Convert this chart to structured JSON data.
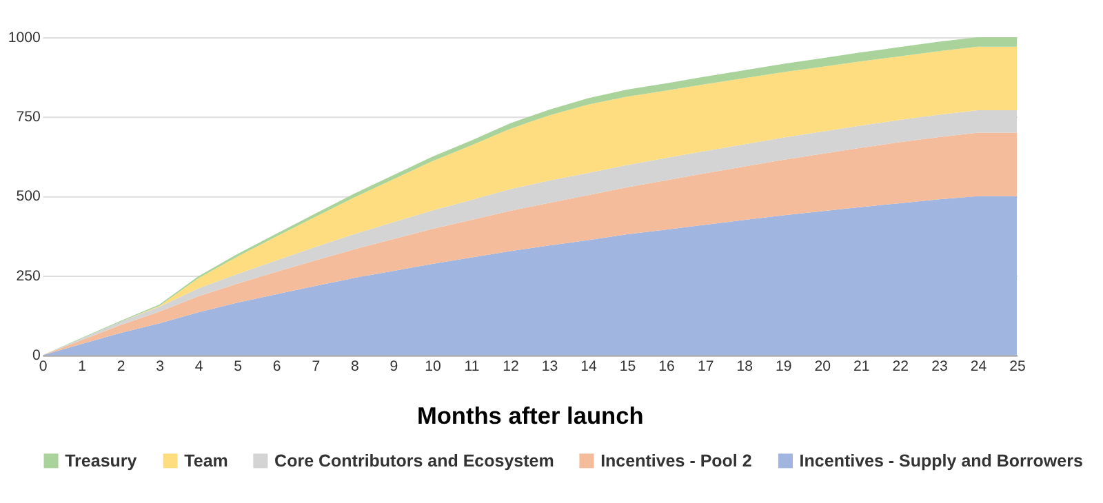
{
  "chart_data": {
    "type": "area",
    "stacked": true,
    "xlabel": "Months after launch",
    "x": [
      0,
      1,
      2,
      3,
      4,
      5,
      6,
      7,
      8,
      9,
      10,
      11,
      12,
      13,
      14,
      15,
      16,
      17,
      18,
      19,
      20,
      21,
      22,
      23,
      24,
      25
    ],
    "series": [
      {
        "name": "Incentives - Supply and Borrowers",
        "color": "#a0b6e0",
        "values": [
          0,
          35,
          70,
          100,
          135,
          165,
          192,
          218,
          243,
          265,
          287,
          307,
          327,
          345,
          362,
          380,
          395,
          410,
          425,
          440,
          453,
          466,
          478,
          490,
          500,
          500
        ]
      },
      {
        "name": "Incentives - Pool 2",
        "color": "#f4bc9a",
        "values": [
          0,
          12,
          25,
          37,
          50,
          60,
          70,
          80,
          90,
          100,
          110,
          118,
          127,
          134,
          141,
          148,
          155,
          162,
          168,
          174,
          180,
          186,
          192,
          196,
          200,
          200
        ]
      },
      {
        "name": "Core Contributors and Ecosystem",
        "color": "#d4d4d4",
        "values": [
          0,
          5,
          10,
          15,
          25,
          30,
          36,
          42,
          48,
          53,
          58,
          63,
          68,
          70,
          70,
          70,
          70,
          70,
          70,
          70,
          70,
          70,
          70,
          70,
          70,
          70
        ]
      },
      {
        "name": "Team",
        "color": "#fddd80",
        "values": [
          0,
          0,
          0,
          3,
          32,
          55,
          75,
          95,
          115,
          135,
          155,
          172,
          190,
          205,
          215,
          215,
          212,
          210,
          208,
          206,
          204,
          202,
          200,
          200,
          200,
          200
        ]
      },
      {
        "name": "Treasury",
        "color": "#a9d39b",
        "values": [
          0,
          2,
          3,
          4,
          6,
          8,
          9,
          10,
          12,
          13,
          14,
          15,
          17,
          18,
          20,
          22,
          23,
          24,
          25,
          26,
          27,
          28,
          29,
          30,
          30,
          30
        ]
      }
    ],
    "xlim": [
      0,
      25
    ],
    "xticks": [
      0,
      1,
      2,
      3,
      4,
      5,
      6,
      7,
      8,
      9,
      10,
      11,
      12,
      13,
      14,
      15,
      16,
      17,
      18,
      19,
      20,
      21,
      22,
      23,
      24,
      25
    ],
    "ylim": [
      0,
      1000
    ],
    "yticks": [
      0,
      250,
      500,
      750,
      1000
    ],
    "grid": "y",
    "legend": "bottom"
  }
}
